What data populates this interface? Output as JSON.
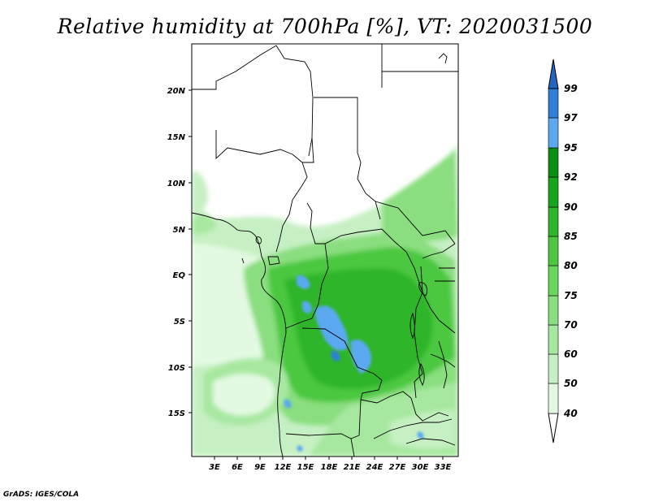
{
  "title": "Relative humidity at 700hPa [%], VT: 2020031500",
  "credit": "GrADS: IGES/COLA",
  "lat_labels": [
    "20N",
    "15N",
    "10N",
    "5N",
    "EQ",
    "5S",
    "10S",
    "15S"
  ],
  "lon_labels": [
    "3E",
    "6E",
    "9E",
    "12E",
    "15E",
    "18E",
    "21E",
    "24E",
    "27E",
    "30E",
    "33E"
  ],
  "colorbar": {
    "labels": [
      "40",
      "50",
      "60",
      "70",
      "75",
      "80",
      "85",
      "90",
      "92",
      "95",
      "97",
      "99"
    ],
    "colors": [
      "#ffffff",
      "#e3f9e2",
      "#c6f0c3",
      "#a7e8a0",
      "#8ade7f",
      "#6ad55d",
      "#4bc83f",
      "#2fb52a",
      "#17a51b",
      "#0a8e12",
      "#5aa9f1",
      "#2f7fd8",
      "#2564c2"
    ]
  }
}
